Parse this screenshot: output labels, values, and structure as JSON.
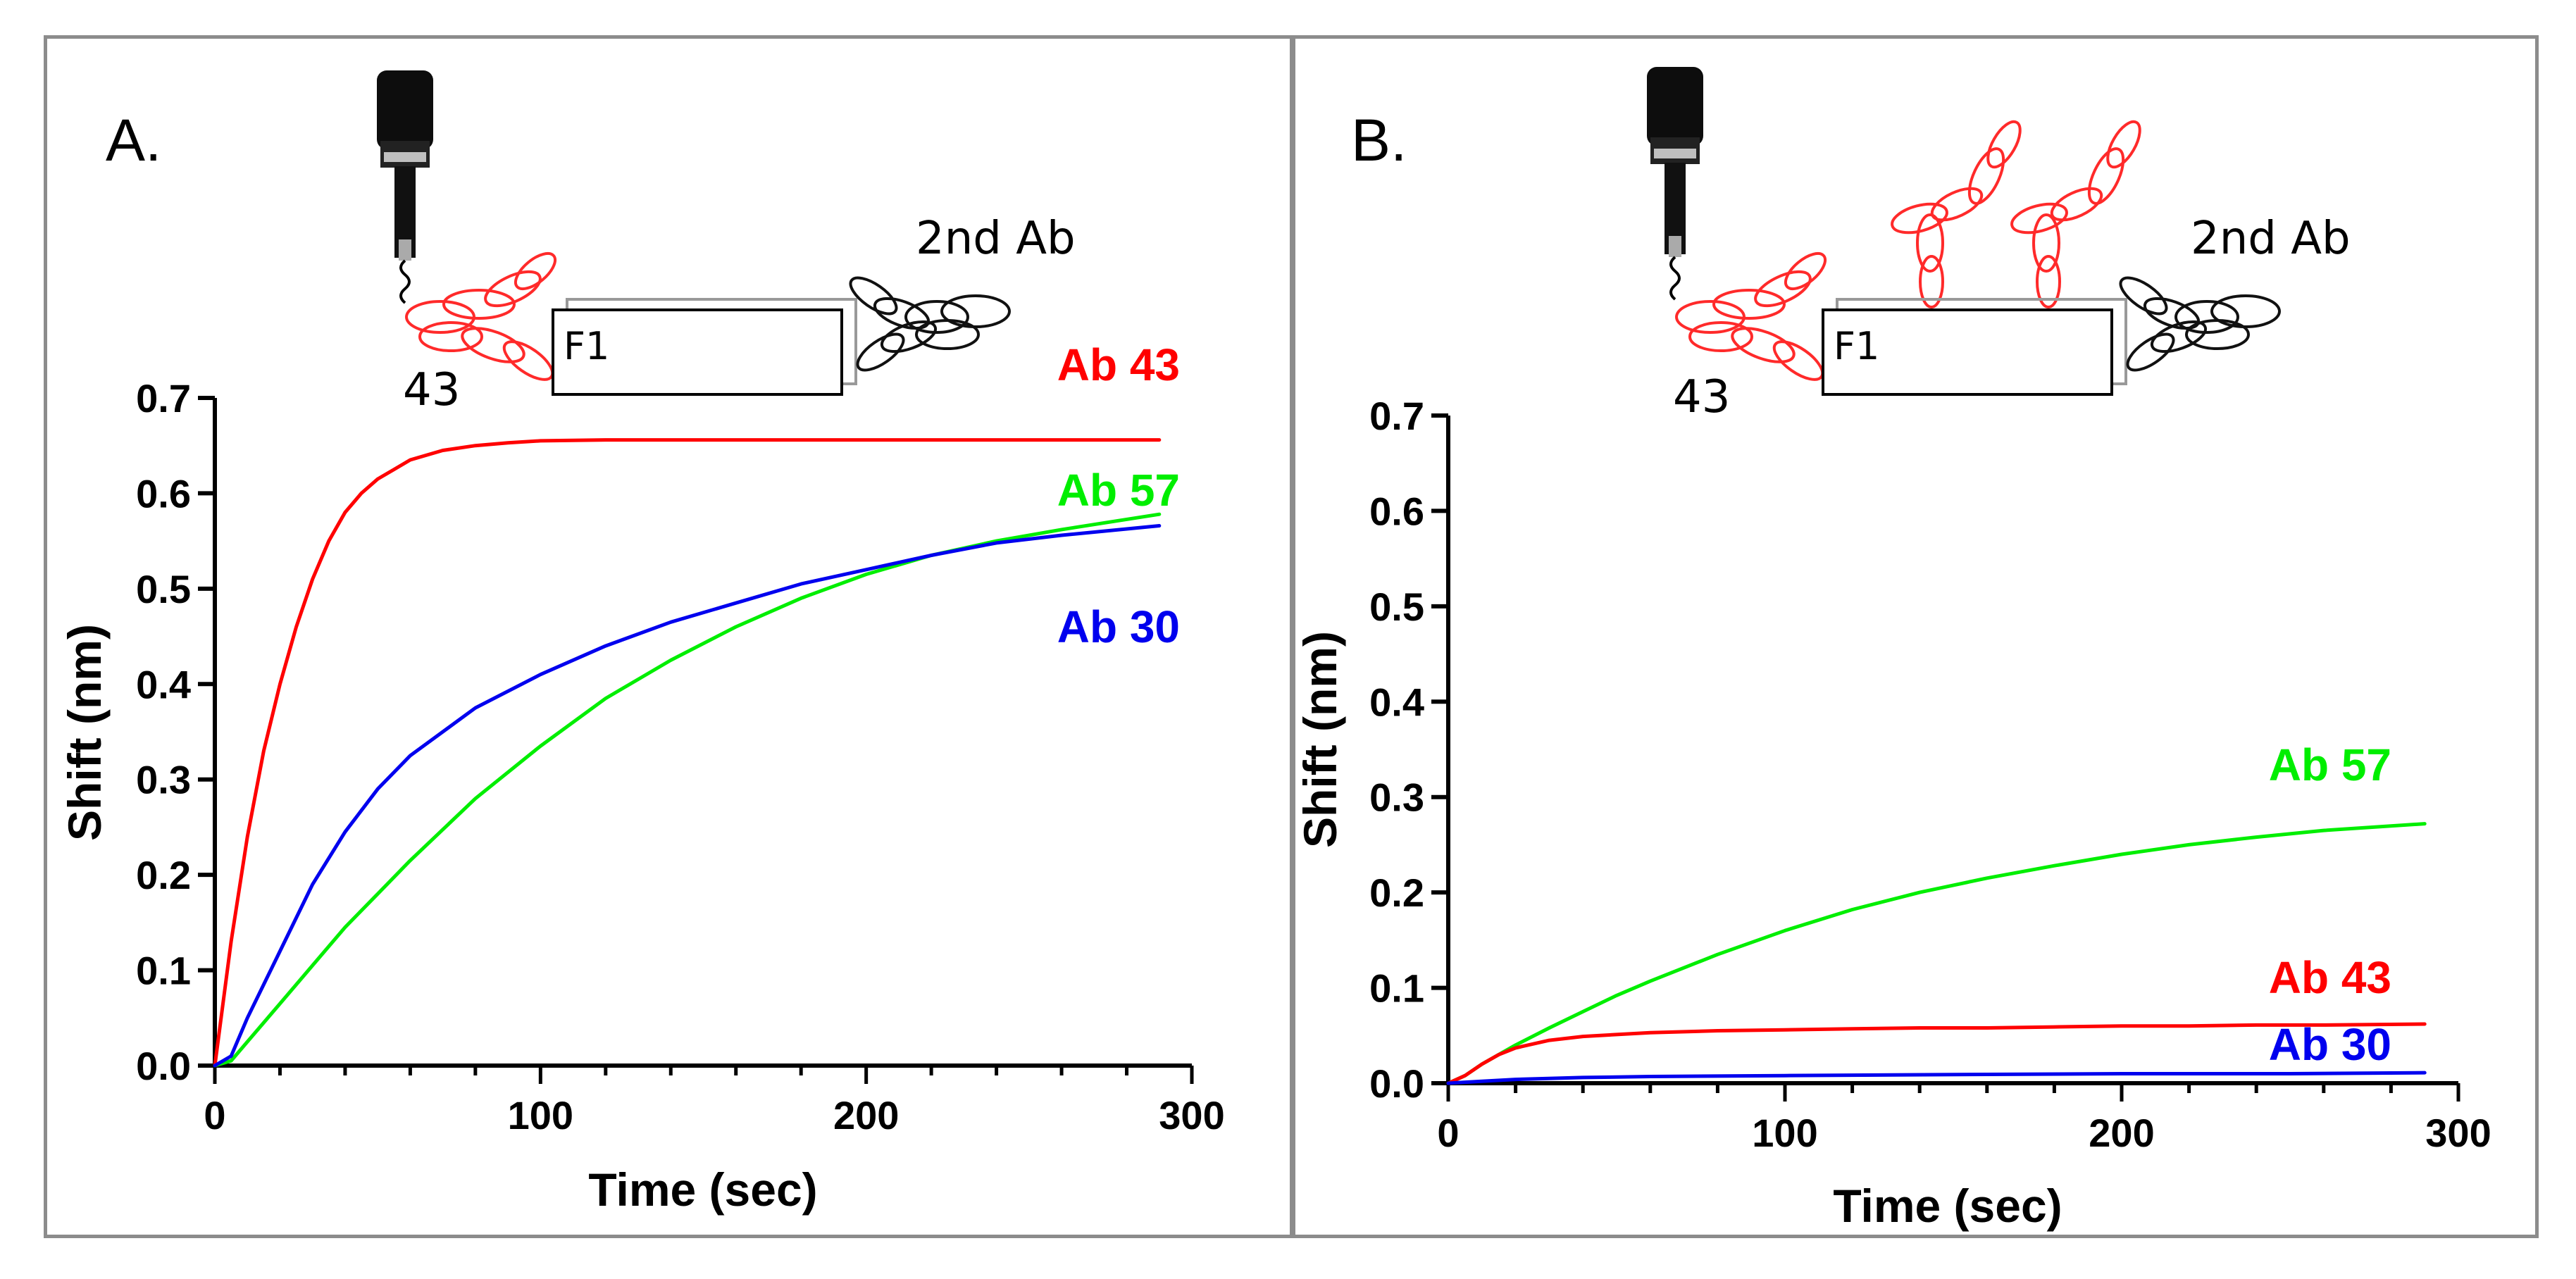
{
  "panels": [
    {
      "letter": "A.",
      "diagram": {
        "top_label": "2nd Ab",
        "bottom_label": "43",
        "box_label": "F1"
      }
    },
    {
      "letter": "B.",
      "diagram": {
        "top_label": "2nd Ab",
        "bottom_label": "43",
        "box_label": "F1"
      }
    }
  ],
  "chart_data": [
    {
      "type": "line",
      "panel": "A.",
      "xlabel": "Time (sec)",
      "ylabel": "Shift (nm)",
      "xlim": [
        0,
        300
      ],
      "ylim": [
        0,
        0.7
      ],
      "xticks": [
        "0",
        "100",
        "200",
        "300"
      ],
      "yticks": [
        "0.0",
        "0.1",
        "0.2",
        "0.3",
        "0.4",
        "0.5",
        "0.6",
        "0.7"
      ],
      "grid": false,
      "legend": "inline labels at line ends",
      "series": [
        {
          "name": "Ab 43",
          "color": "#ff0000",
          "x": [
            0,
            5,
            10,
            15,
            20,
            25,
            30,
            35,
            40,
            45,
            50,
            55,
            60,
            70,
            80,
            90,
            100,
            120,
            140,
            160,
            180,
            200,
            220,
            240,
            260,
            290
          ],
          "y": [
            0.0,
            0.13,
            0.24,
            0.33,
            0.4,
            0.46,
            0.51,
            0.55,
            0.58,
            0.6,
            0.615,
            0.625,
            0.635,
            0.645,
            0.65,
            0.653,
            0.655,
            0.656,
            0.656,
            0.656,
            0.656,
            0.656,
            0.656,
            0.656,
            0.656,
            0.656
          ]
        },
        {
          "name": "Ab 57",
          "color": "#00ee00",
          "x": [
            0,
            5,
            10,
            20,
            30,
            40,
            50,
            60,
            80,
            100,
            120,
            140,
            160,
            180,
            200,
            220,
            240,
            260,
            290
          ],
          "y": [
            0.0,
            0.005,
            0.025,
            0.065,
            0.105,
            0.145,
            0.18,
            0.215,
            0.28,
            0.335,
            0.385,
            0.425,
            0.46,
            0.49,
            0.515,
            0.535,
            0.55,
            0.562,
            0.578
          ]
        },
        {
          "name": "Ab 30",
          "color": "#0000ee",
          "x": [
            0,
            5,
            10,
            20,
            30,
            40,
            50,
            60,
            80,
            100,
            120,
            140,
            160,
            180,
            200,
            220,
            240,
            260,
            290
          ],
          "y": [
            0.0,
            0.01,
            0.05,
            0.12,
            0.19,
            0.245,
            0.29,
            0.325,
            0.375,
            0.41,
            0.44,
            0.465,
            0.485,
            0.505,
            0.52,
            0.535,
            0.548,
            0.556,
            0.566
          ]
        }
      ]
    },
    {
      "type": "line",
      "panel": "B.",
      "xlabel": "Time (sec)",
      "ylabel": "Shift (nm)",
      "xlim": [
        0,
        300
      ],
      "ylim": [
        0,
        0.7
      ],
      "xticks": [
        "0",
        "100",
        "200",
        "300"
      ],
      "yticks": [
        "0.0",
        "0.1",
        "0.2",
        "0.3",
        "0.4",
        "0.5",
        "0.6",
        "0.7"
      ],
      "grid": false,
      "legend": "inline labels at line ends",
      "series": [
        {
          "name": "Ab 57",
          "color": "#00ee00",
          "x": [
            0,
            5,
            10,
            20,
            30,
            40,
            50,
            60,
            80,
            100,
            120,
            140,
            160,
            180,
            200,
            220,
            240,
            260,
            290
          ],
          "y": [
            0.0,
            0.008,
            0.02,
            0.04,
            0.058,
            0.075,
            0.092,
            0.107,
            0.135,
            0.16,
            0.182,
            0.2,
            0.215,
            0.228,
            0.24,
            0.25,
            0.258,
            0.265,
            0.272
          ]
        },
        {
          "name": "Ab 43",
          "color": "#ff0000",
          "x": [
            0,
            5,
            10,
            15,
            20,
            30,
            40,
            50,
            60,
            80,
            100,
            120,
            140,
            160,
            180,
            200,
            220,
            240,
            260,
            290
          ],
          "y": [
            0.0,
            0.008,
            0.02,
            0.03,
            0.037,
            0.045,
            0.049,
            0.051,
            0.053,
            0.055,
            0.056,
            0.057,
            0.058,
            0.058,
            0.059,
            0.06,
            0.06,
            0.061,
            0.061,
            0.062
          ]
        },
        {
          "name": "Ab 30",
          "color": "#0000ee",
          "x": [
            0,
            10,
            20,
            40,
            60,
            100,
            150,
            200,
            250,
            290
          ],
          "y": [
            0.0,
            0.002,
            0.004,
            0.006,
            0.007,
            0.008,
            0.009,
            0.01,
            0.01,
            0.011
          ]
        }
      ]
    }
  ]
}
